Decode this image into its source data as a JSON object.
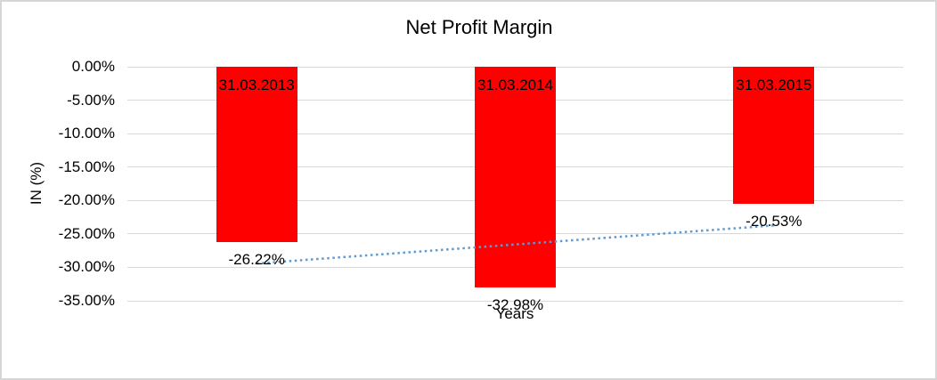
{
  "chart_data": {
    "type": "bar",
    "title": "Net Profit Margin",
    "xlabel": "Years",
    "ylabel": "IN (%)",
    "categories": [
      "31.03.2013",
      "31.03.2014",
      "31.03.2015"
    ],
    "series": [
      {
        "name": "Net Profit Margin",
        "values": [
          -26.22,
          -32.98,
          -20.53
        ]
      }
    ],
    "data_labels": [
      "-26.22%",
      "-32.98%",
      "-20.53%"
    ],
    "y_ticks": [
      {
        "label": "0.00%",
        "value": 0
      },
      {
        "label": "-5.00%",
        "value": -5
      },
      {
        "label": "-10.00%",
        "value": -10
      },
      {
        "label": "-15.00%",
        "value": -15
      },
      {
        "label": "-20.00%",
        "value": -20
      },
      {
        "label": "-25.00%",
        "value": -25
      },
      {
        "label": "-30.00%",
        "value": -30
      },
      {
        "label": "-35.00%",
        "value": -35
      }
    ],
    "ylim": [
      -35,
      0
    ],
    "grid": true,
    "legend": "none",
    "bar_color": "#ff0000",
    "gridline_color": "#d9d9d9",
    "trendline": {
      "type": "linear",
      "style": "dotted",
      "color": "#5b9bd5"
    }
  }
}
